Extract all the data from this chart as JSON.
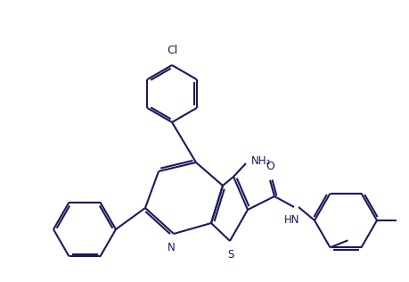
{
  "bg_color": "#ffffff",
  "line_color": "#1a1a5e",
  "line_width": 1.5,
  "figsize": [
    4.59,
    3.16
  ],
  "dpi": 100,
  "cl_label": "Cl",
  "s_label": "S",
  "n_label": "N",
  "nh2_label": "NH₂",
  "o_label": "O",
  "hn_label": "HN"
}
